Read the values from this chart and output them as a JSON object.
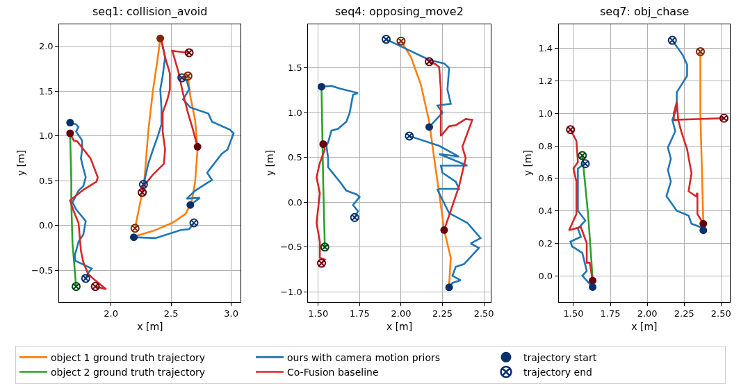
{
  "chart_data": [
    {
      "type": "line",
      "title": "seq1: collision_avoid",
      "xlabel": "x [m]",
      "ylabel": "y [m]",
      "xlim": [
        1.57,
        3.08
      ],
      "ylim": [
        -0.85,
        2.25
      ],
      "xticks": [
        {
          "value": 2,
          "label": "2.0"
        },
        {
          "value": 2.5,
          "label": "2.5"
        },
        {
          "value": 3,
          "label": "3.0"
        }
      ],
      "yticks": [
        {
          "value": -0.5,
          "label": "−0.5"
        },
        {
          "value": 0,
          "label": "0.0"
        },
        {
          "value": 0.5,
          "label": "0.5"
        },
        {
          "value": 1,
          "label": "1.0"
        },
        {
          "value": 1.5,
          "label": "1.5"
        },
        {
          "value": 2,
          "label": "2.0"
        }
      ],
      "grid": true,
      "legend": "bottom",
      "line_style": "solid",
      "series": [
        {
          "name": "object 1 ground truth trajectory",
          "color": "#ff7f0e",
          "x": [
            2.41,
            2.39,
            2.35,
            2.31,
            2.28,
            2.26,
            2.2,
            null,
            2.2,
            2.35,
            2.51,
            2.62,
            2.67,
            2.7,
            2.72,
            2.7,
            2.66,
            2.64
          ],
          "values": [
            2.09,
            1.88,
            1.52,
            1.05,
            0.54,
            0.37,
            -0.03,
            null,
            -0.12,
            -0.06,
            0.03,
            0.13,
            0.26,
            0.49,
            0.85,
            1.18,
            1.44,
            1.67
          ]
        },
        {
          "name": "object 2 ground truth trajectory",
          "color": "#2ca02c",
          "x": [
            1.66,
            1.67,
            1.67,
            1.68,
            1.71
          ],
          "values": [
            1.03,
            0.5,
            0.25,
            -0.2,
            -0.68
          ]
        },
        {
          "name": "ours with camera motion priors",
          "color": "#1f77b4",
          "x": [
            1.66,
            1.71,
            1.73,
            1.71,
            1.76,
            1.76,
            1.75,
            1.77,
            1.79,
            1.77,
            1.73,
            1.68,
            1.71,
            1.79,
            1.77,
            1.73,
            1.7,
            1.7,
            1.84,
            1.81,
            1.79,
            null,
            2.19,
            2.37,
            2.58,
            2.65,
            2.69,
            null,
            2.66,
            2.74,
            2.63,
            2.7,
            2.84,
            2.8,
            2.92,
            2.97,
            3.02,
            2.99,
            2.84,
            2.81,
            2.66,
            2.6,
            2.65,
            2.63,
            2.59,
            null,
            2.42,
            2.45,
            2.43,
            2.41,
            2.42,
            2.42,
            2.39,
            2.35,
            2.31,
            2.28,
            2.27
          ],
          "values": [
            1.15,
            1.13,
            1.1,
            1.05,
            0.95,
            0.85,
            0.75,
            0.64,
            0.54,
            0.44,
            0.39,
            0.26,
            0.18,
            0.05,
            -0.1,
            -0.18,
            -0.33,
            -0.39,
            -0.48,
            -0.53,
            -0.59,
            null,
            -0.13,
            -0.14,
            -0.05,
            -0.04,
            0.03,
            null,
            0.23,
            0.31,
            0.3,
            0.39,
            0.51,
            0.59,
            0.8,
            0.85,
            1.03,
            1.07,
            1.16,
            1.25,
            1.32,
            1.41,
            1.52,
            1.62,
            1.65,
            null,
            2.06,
            1.88,
            1.67,
            1.52,
            1.31,
            1.13,
            1.0,
            0.85,
            0.69,
            0.51,
            0.46
          ]
        },
        {
          "name": "Co-Fusion baseline",
          "color": "#d62728",
          "x": [
            1.66,
            1.69,
            1.72,
            1.83,
            1.89,
            1.88,
            1.77,
            1.66,
            1.69,
            1.73,
            1.75,
            1.77,
            1.81,
            1.85,
            1.96,
            1.87,
            null,
            2.26,
            2.27,
            2.35,
            2.44,
            2.45,
            2.43,
            2.43,
            2.47,
            2.49,
            2.49,
            2.45,
            2.42,
            null,
            2.72,
            2.68,
            2.64,
            2.6,
            2.56,
            2.51,
            2.65
          ],
          "values": [
            1.03,
            0.95,
            0.94,
            0.75,
            0.54,
            0.49,
            0.4,
            0.28,
            0.16,
            0.03,
            -0.28,
            -0.41,
            -0.54,
            -0.59,
            -0.71,
            -0.68,
            null,
            0.37,
            0.44,
            0.57,
            0.69,
            0.85,
            1.05,
            1.26,
            1.41,
            1.52,
            1.7,
            1.88,
            2.07,
            null,
            0.88,
            1.08,
            1.26,
            1.47,
            1.72,
            1.95,
            1.93
          ]
        },
        {
          "name": "trajectory start",
          "type": "scatter",
          "marker": "circle",
          "color": "#08306b",
          "x": [
            1.66,
            1.66,
            2.41,
            2.72,
            2.19,
            2.66
          ],
          "values": [
            1.15,
            1.03,
            2.09,
            0.88,
            -0.13,
            0.23
          ],
          "colors": [
            "#08306b",
            "#67000d",
            "#7f2704",
            "#67000d",
            "#08306b",
            "#08306b"
          ]
        },
        {
          "name": "trajectory end",
          "type": "scatter",
          "marker": "cross",
          "color": "#08306b",
          "x": [
            1.71,
            1.79,
            1.87,
            2.27,
            2.26,
            2.2,
            2.69,
            2.59,
            2.64,
            2.65
          ],
          "values": [
            -0.68,
            -0.59,
            -0.68,
            0.46,
            0.37,
            -0.03,
            0.03,
            1.65,
            1.67,
            1.93
          ],
          "colors": [
            "#00441b",
            "#08306b",
            "#67000d",
            "#08306b",
            "#67000d",
            "#7f2704",
            "#08306b",
            "#08306b",
            "#7f2704",
            "#67000d"
          ]
        }
      ]
    },
    {
      "type": "line",
      "title": "seq4: opposing_move2",
      "xlabel": "x [m]",
      "ylabel": "y [m]",
      "xlim": [
        1.44,
        2.54
      ],
      "ylim": [
        -1.11,
        1.99
      ],
      "xticks": [
        {
          "value": 1.5,
          "label": "1.50"
        },
        {
          "value": 1.75,
          "label": "1.75"
        },
        {
          "value": 2,
          "label": "2.00"
        },
        {
          "value": 2.25,
          "label": "2.25"
        },
        {
          "value": 2.5,
          "label": "2.50"
        }
      ],
      "yticks": [
        {
          "value": -1,
          "label": "−1.0"
        },
        {
          "value": -0.5,
          "label": "−0.5"
        },
        {
          "value": 0,
          "label": "0.0"
        },
        {
          "value": 0.5,
          "label": "0.5"
        },
        {
          "value": 1,
          "label": "1.0"
        },
        {
          "value": 1.5,
          "label": "1.5"
        }
      ],
      "grid": true,
      "legend": "bottom",
      "line_style": "solid",
      "series": [
        {
          "name": "object 1 ground truth trajectory",
          "color": "#ff7f0e",
          "x": [
            2.0,
            2.06,
            2.12,
            2.17,
            2.2,
            2.24,
            2.26,
            2.3,
            2.29
          ],
          "values": [
            1.8,
            1.62,
            1.31,
            0.9,
            0.49,
            -0.03,
            -0.31,
            -0.62,
            -0.92
          ]
        },
        {
          "name": "object 2 ground truth trajectory",
          "color": "#2ca02c",
          "x": [
            1.52,
            1.53,
            1.54
          ],
          "values": [
            1.28,
            0.23,
            -0.5
          ]
        },
        {
          "name": "ours with camera motion priors",
          "color": "#1f77b4",
          "x": [
            1.52,
            1.58,
            1.63,
            1.74,
            1.71,
            1.69,
            1.67,
            1.62,
            1.58,
            1.56,
            1.55,
            1.56,
            1.56,
            1.63,
            1.67,
            1.73,
            1.75,
            1.71,
            1.74,
            1.72,
            null,
            2.29,
            2.31,
            2.36,
            2.31,
            2.33,
            2.38,
            2.47,
            2.42,
            2.48,
            2.4,
            2.35,
            2.29,
            2.22,
            2.23,
            2.35,
            2.33,
            2.25,
            2.24,
            2.4,
            2.23,
            2.35,
            2.23,
            2.05,
            null,
            2.17,
            2.2,
            2.25,
            2.22,
            2.3,
            2.28,
            2.29,
            2.26,
            2.17,
            1.91
          ],
          "values": [
            1.29,
            1.3,
            1.27,
            1.22,
            1.2,
            1.0,
            0.9,
            0.82,
            0.8,
            0.67,
            0.63,
            0.49,
            0.39,
            0.23,
            0.13,
            0.09,
            0.06,
            -0.03,
            -0.1,
            -0.17,
            null,
            -0.95,
            -0.9,
            -0.87,
            -0.82,
            -0.72,
            -0.69,
            -0.51,
            -0.46,
            -0.4,
            -0.23,
            -0.18,
            -0.12,
            0.14,
            0.15,
            0.15,
            0.23,
            0.33,
            0.41,
            0.41,
            0.54,
            0.51,
            0.63,
            0.74,
            null,
            0.84,
            0.9,
            1.0,
            1.08,
            1.1,
            1.26,
            1.5,
            1.55,
            1.59,
            1.82
          ]
        },
        {
          "name": "Co-Fusion baseline",
          "color": "#d62728",
          "x": [
            1.53,
            1.54,
            1.51,
            1.49,
            1.51,
            1.49,
            1.51,
            1.51,
            1.54,
            1.52,
            null,
            2.26,
            2.35,
            2.39,
            2.37,
            2.43,
            2.39,
            2.33,
            2.29,
            2.24,
            2.24,
            2.23,
            2.21,
            2.17
          ],
          "values": [
            0.65,
            0.59,
            0.44,
            0.28,
            0.1,
            -0.23,
            -0.44,
            -0.62,
            -0.64,
            -0.68,
            null,
            -0.31,
            0.18,
            0.49,
            0.62,
            0.92,
            0.93,
            0.86,
            0.85,
            0.74,
            1.26,
            1.51,
            1.54,
            1.57
          ]
        },
        {
          "name": "trajectory start",
          "type": "scatter",
          "marker": "circle",
          "color": "#08306b",
          "x": [
            1.52,
            1.53,
            2.17,
            2.26,
            2.29
          ],
          "values": [
            1.29,
            0.65,
            0.84,
            -0.31,
            -0.95
          ],
          "colors": [
            "#08306b",
            "#67000d",
            "#08306b",
            "#67000d",
            "#08306b"
          ]
        },
        {
          "name": "trajectory end",
          "type": "scatter",
          "marker": "cross",
          "color": "#08306b",
          "x": [
            1.54,
            1.52,
            1.72,
            1.91,
            2.0,
            2.17,
            2.05
          ],
          "values": [
            -0.5,
            -0.68,
            -0.17,
            1.82,
            1.8,
            1.57,
            0.74
          ],
          "colors": [
            "#00441b",
            "#67000d",
            "#08306b",
            "#08306b",
            "#7f2704",
            "#67000d",
            "#08306b"
          ]
        }
      ]
    },
    {
      "type": "line",
      "title": "seq7: obj_chase",
      "xlabel": "x [m]",
      "ylabel": "y [m]",
      "xlim": [
        1.4,
        2.56
      ],
      "ylim": [
        -0.16,
        1.55
      ],
      "xticks": [
        {
          "value": 1.5,
          "label": "1.50"
        },
        {
          "value": 1.75,
          "label": "1.75"
        },
        {
          "value": 2,
          "label": "2.00"
        },
        {
          "value": 2.25,
          "label": "2.25"
        },
        {
          "value": 2.5,
          "label": "2.50"
        }
      ],
      "yticks": [
        {
          "value": 0,
          "label": "0.0"
        },
        {
          "value": 0.2,
          "label": "0.2"
        },
        {
          "value": 0.4,
          "label": "0.4"
        },
        {
          "value": 0.6,
          "label": "0.6"
        },
        {
          "value": 0.8,
          "label": "0.8"
        },
        {
          "value": 1,
          "label": "1.0"
        },
        {
          "value": 1.2,
          "label": "1.2"
        },
        {
          "value": 1.4,
          "label": "1.4"
        }
      ],
      "grid": true,
      "legend": "bottom",
      "line_style": "solid",
      "series": [
        {
          "name": "object 1 ground truth trajectory",
          "color": "#ff7f0e",
          "x": [
            2.38,
            2.36,
            2.36
          ],
          "values": [
            0.32,
            1.0,
            1.38
          ]
        },
        {
          "name": "object 2 ground truth trajectory",
          "color": "#2ca02c",
          "x": [
            1.63,
            1.6,
            1.56
          ],
          "values": [
            -0.02,
            0.37,
            0.74
          ]
        },
        {
          "name": "ours with camera motion priors",
          "color": "#1f77b4",
          "x": [
            1.63,
            1.59,
            1.56,
            1.59,
            1.56,
            1.51,
            1.49,
            1.48,
            1.55,
            1.53,
            1.58,
            1.53,
            1.53,
            1.53,
            1.56,
            1.58,
            null,
            2.38,
            2.36,
            2.3,
            2.28,
            2.2,
            2.13,
            2.16,
            2.14,
            2.16,
            2.14,
            2.19,
            2.17,
            2.2,
            2.2,
            2.27,
            2.27,
            2.24,
            2.17
          ],
          "values": [
            -0.07,
            -0.03,
            0.0,
            0.03,
            0.14,
            0.17,
            0.18,
            0.21,
            0.24,
            0.29,
            0.34,
            0.4,
            0.52,
            0.66,
            0.68,
            0.69,
            null,
            0.28,
            0.3,
            0.32,
            0.37,
            0.4,
            0.49,
            0.58,
            0.65,
            0.72,
            0.79,
            0.89,
            0.96,
            1.03,
            1.13,
            1.23,
            1.3,
            1.36,
            1.45
          ]
        },
        {
          "name": "Co-Fusion baseline",
          "color": "#d62728",
          "x": [
            1.63,
            1.61,
            1.59,
            1.59,
            1.55,
            1.47,
            1.52,
            1.52,
            1.5,
            1.53,
            1.52,
            1.48,
            null,
            2.38,
            2.34,
            2.34,
            2.33,
            2.28,
            2.3,
            2.27,
            2.23,
            2.21,
            2.2,
            2.18,
            2.18,
            2.52
          ],
          "values": [
            -0.03,
            0.08,
            0.08,
            0.2,
            0.3,
            0.28,
            0.38,
            0.58,
            0.66,
            0.7,
            0.83,
            0.9,
            null,
            0.32,
            0.38,
            0.51,
            0.49,
            0.52,
            0.63,
            0.78,
            0.89,
            0.96,
            1.07,
            1.0,
            0.96,
            0.97
          ]
        },
        {
          "name": "trajectory start",
          "type": "scatter",
          "marker": "circle",
          "color": "#08306b",
          "x": [
            1.63,
            1.63,
            2.38,
            2.38
          ],
          "values": [
            -0.03,
            -0.07,
            0.32,
            0.28
          ],
          "colors": [
            "#67000d",
            "#08306b",
            "#67000d",
            "#08306b"
          ]
        },
        {
          "name": "trajectory end",
          "type": "scatter",
          "marker": "cross",
          "color": "#08306b",
          "x": [
            1.48,
            1.56,
            1.58,
            2.17,
            2.36,
            2.52
          ],
          "values": [
            0.9,
            0.74,
            0.69,
            1.45,
            1.38,
            0.97
          ],
          "colors": [
            "#67000d",
            "#00441b",
            "#08306b",
            "#08306b",
            "#7f2704",
            "#67000d"
          ]
        }
      ]
    }
  ]
}
